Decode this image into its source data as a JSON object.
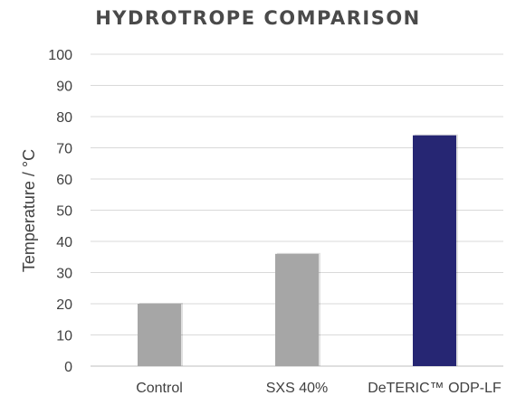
{
  "chart_data": {
    "type": "bar",
    "title": "HYDROTROPE COMPARISON",
    "xlabel": "",
    "ylabel": "Temperature / °C",
    "categories": [
      "Control",
      "SXS 40%",
      "DeTERIC™ ODP-LF"
    ],
    "values": [
      20,
      36,
      74
    ],
    "colors": [
      "#a6a6a6",
      "#a6a6a6",
      "#262673"
    ],
    "ylim": [
      0,
      100
    ],
    "yticks": [
      0,
      10,
      20,
      30,
      40,
      50,
      60,
      70,
      80,
      90,
      100
    ],
    "grid": true,
    "legend": "none"
  }
}
